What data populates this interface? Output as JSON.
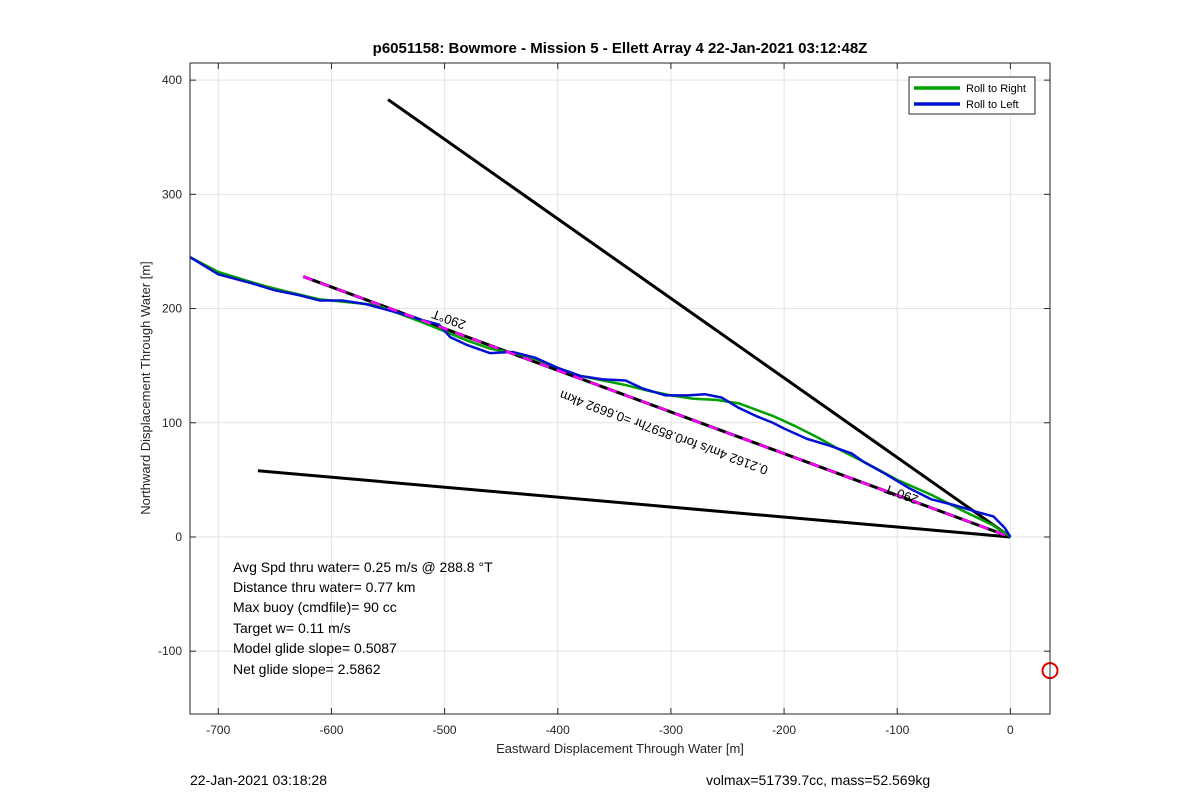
{
  "chart_data": {
    "type": "line",
    "title": "p6051158: Bowmore - Mission 5 - Ellett Array 4 22-Jan-2021 03:12:48Z",
    "xlabel": "Eastward Displacement Through Water [m]",
    "ylabel": "Northward Displacement Through Water [m]",
    "xlim": [
      -725,
      35
    ],
    "ylim": [
      -155,
      415
    ],
    "xticks": [
      -700,
      -600,
      -500,
      -400,
      -300,
      -200,
      -100,
      0
    ],
    "yticks": [
      -100,
      0,
      100,
      200,
      300,
      400
    ],
    "grid": true,
    "legend_position": "top-right",
    "legend": [
      "Roll to Right",
      "Roll to Left"
    ],
    "colors": {
      "roll_right": "#00a000",
      "roll_left": "#0010d0",
      "guide": "#000000",
      "dashed_overlay": "#ff00ff",
      "marker": "#e00000"
    },
    "series": [
      {
        "name": "Roll to Right",
        "x": [
          -725,
          -700,
          -660,
          -640,
          -610,
          -560,
          -520,
          -500,
          -480,
          -460,
          -440,
          -420,
          -400,
          -380,
          -360,
          -340,
          -320,
          -300,
          -280,
          -260,
          -240,
          -210,
          -190,
          -170,
          -150,
          -130,
          -100,
          -70,
          -40,
          -15,
          0
        ],
        "y": [
          245,
          232,
          220,
          215,
          208,
          203,
          188,
          180,
          172,
          165,
          161,
          156,
          148,
          141,
          137,
          133,
          128,
          124,
          121,
          120,
          117,
          106,
          97,
          87,
          76,
          66,
          50,
          37,
          22,
          10,
          0
        ]
      },
      {
        "name": "Roll to Left",
        "x": [
          -725,
          -700,
          -670,
          -650,
          -630,
          -610,
          -590,
          -570,
          -540,
          -520,
          -505,
          -495,
          -480,
          -460,
          -440,
          -420,
          -400,
          -380,
          -360,
          -340,
          -325,
          -305,
          -285,
          -270,
          -255,
          -240,
          -225,
          -210,
          -200,
          -180,
          -160,
          -140,
          -130,
          -110,
          -90,
          -70,
          -50,
          -30,
          -15,
          -5,
          0
        ],
        "y": [
          245,
          230,
          222,
          216,
          212,
          207,
          207,
          204,
          196,
          190,
          186,
          175,
          168,
          161,
          162,
          157,
          148,
          141,
          138,
          137,
          130,
          124,
          124,
          125,
          122,
          113,
          106,
          100,
          95,
          86,
          80,
          73,
          66,
          55,
          43,
          33,
          28,
          22,
          18,
          8,
          0
        ]
      }
    ],
    "guide_lines": [
      {
        "x": [
          -550,
          0
        ],
        "y": [
          383,
          0
        ]
      },
      {
        "x": [
          -665,
          0
        ],
        "y": [
          58,
          0
        ]
      },
      {
        "x": [
          -625,
          0
        ],
        "y": [
          228,
          0
        ]
      }
    ],
    "marker": {
      "x": 35,
      "y": -117
    },
    "annotations": [
      {
        "text": "290°T",
        "x": -495,
        "y": 194
      },
      {
        "text": "0.2162 4m/s for0.8597hr =0.6692 4km",
        "x": -305,
        "y": 95
      },
      {
        "text": "290°T",
        "x": -95,
        "y": 41
      }
    ],
    "stats_box": [
      "Avg Spd thru water=  0.25 m/s @ 288.8 °T",
      "Distance thru water=  0.77 km",
      "Max buoy (cmdfile)= 90 cc",
      "Target w= 0.11 m/s",
      "Model glide slope= 0.5087",
      "Net glide slope= 2.5862"
    ]
  },
  "footer": {
    "timestamp": "22-Jan-2021 03:18:28",
    "vehicle": "volmax=51739.7cc, mass=52.569kg"
  }
}
